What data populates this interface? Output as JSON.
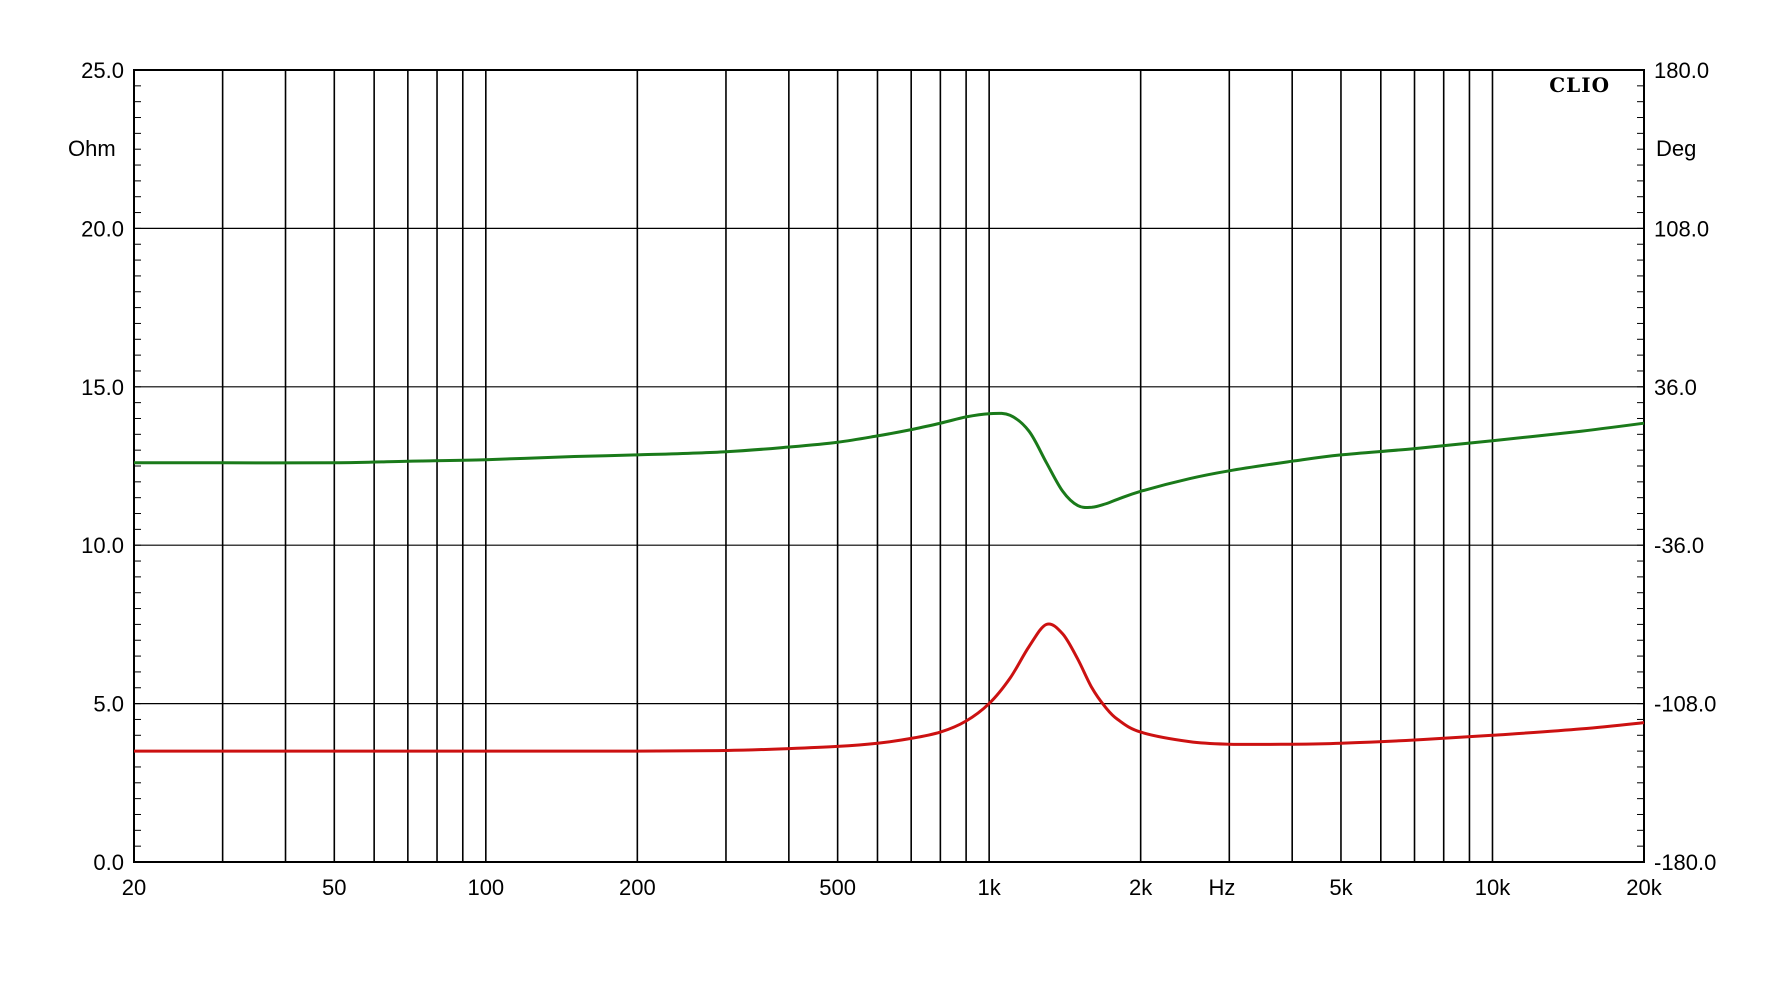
{
  "chart_data": {
    "type": "line",
    "brand": "CLIO",
    "x_unit_label": "Hz",
    "y_left_unit_label": "Ohm",
    "y_right_unit_label": "Deg",
    "x_scale": "log",
    "xlim": [
      20,
      20000
    ],
    "ylim_left": [
      0,
      25
    ],
    "ylim_right": [
      -180,
      180
    ],
    "grid": true,
    "x_ticks": [
      {
        "value": 20,
        "label": "20"
      },
      {
        "value": 50,
        "label": "50"
      },
      {
        "value": 100,
        "label": "100"
      },
      {
        "value": 200,
        "label": "200"
      },
      {
        "value": 500,
        "label": "500"
      },
      {
        "value": 1000,
        "label": "1k"
      },
      {
        "value": 2000,
        "label": "2k"
      },
      {
        "value": 5000,
        "label": "5k"
      },
      {
        "value": 10000,
        "label": "10k"
      },
      {
        "value": 20000,
        "label": "20k"
      }
    ],
    "y_left_ticks": [
      "0.0",
      "5.0",
      "10.0",
      "15.0",
      "20.0",
      "25.0"
    ],
    "y_right_ticks": [
      "-180.0",
      "-108.0",
      "-36.0",
      "36.0",
      "108.0",
      "180.0"
    ],
    "series": [
      {
        "color": "#1a7a1a",
        "axis": "right",
        "x": [
          20,
          30,
          50,
          70,
          100,
          150,
          200,
          300,
          400,
          500,
          600,
          700,
          800,
          900,
          1000,
          1100,
          1200,
          1300,
          1400,
          1500,
          1600,
          1700,
          1800,
          2000,
          2500,
          3000,
          4000,
          5000,
          7000,
          10000,
          15000,
          20000
        ],
        "y": [
          12.6,
          12.6,
          12.6,
          12.65,
          12.7,
          12.8,
          12.85,
          12.95,
          13.1,
          13.25,
          13.45,
          13.65,
          13.85,
          14.05,
          14.15,
          14.1,
          13.6,
          12.6,
          11.7,
          11.25,
          11.2,
          11.3,
          11.45,
          11.7,
          12.1,
          12.35,
          12.65,
          12.85,
          13.05,
          13.3,
          13.6,
          13.85
        ]
      },
      {
        "color": "#cc1111",
        "axis": "left",
        "x": [
          20,
          50,
          100,
          200,
          300,
          400,
          500,
          600,
          700,
          800,
          900,
          1000,
          1100,
          1200,
          1300,
          1400,
          1500,
          1600,
          1700,
          1800,
          2000,
          2500,
          3000,
          4000,
          5000,
          7000,
          10000,
          15000,
          20000
        ],
        "y": [
          3.5,
          3.5,
          3.5,
          3.5,
          3.52,
          3.58,
          3.65,
          3.75,
          3.9,
          4.1,
          4.45,
          5.0,
          5.8,
          6.8,
          7.5,
          7.2,
          6.4,
          5.5,
          4.9,
          4.5,
          4.1,
          3.8,
          3.72,
          3.72,
          3.75,
          3.85,
          4.0,
          4.2,
          4.4
        ]
      }
    ]
  }
}
